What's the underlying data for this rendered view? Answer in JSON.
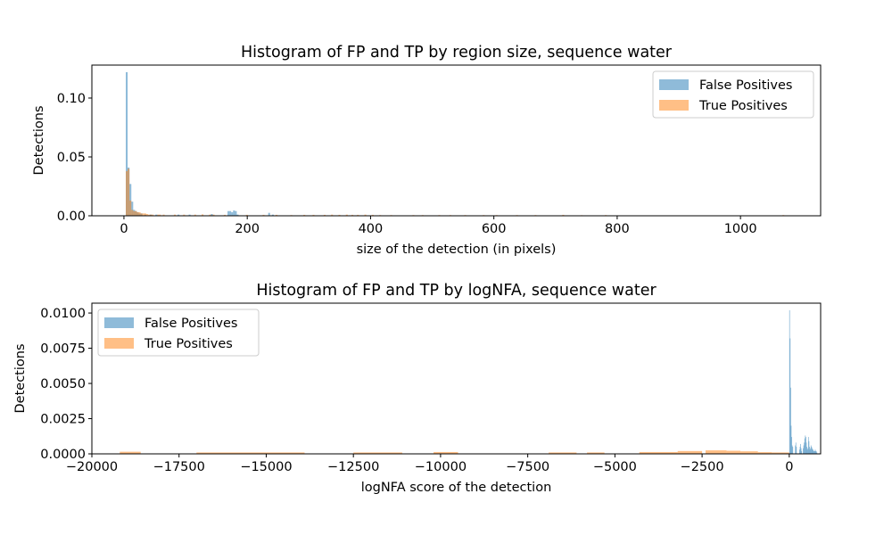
{
  "chart_data": [
    {
      "type": "histogram",
      "title": "Histogram of FP and TP by region size, sequence water",
      "xlabel": "size of the detection (in pixels)",
      "ylabel": "Detections",
      "xlim": [
        -52,
        1130
      ],
      "ylim": [
        0,
        0.128
      ],
      "xticks": [
        0,
        200,
        400,
        600,
        800,
        1000
      ],
      "xtick_labels": [
        "0",
        "200",
        "400",
        "600",
        "800",
        "1000"
      ],
      "yticks": [
        0,
        0.05,
        0.1
      ],
      "ytick_labels": [
        "0.00",
        "0.05",
        "0.10"
      ],
      "grid": false,
      "legend_position": "upper right",
      "series": [
        {
          "name": "False Positives",
          "color": "#1f77b4",
          "alpha": 0.5,
          "bins": [
            [
              3,
              6,
              0.122
            ],
            [
              6,
              9,
              0.041
            ],
            [
              9,
              12,
              0.027
            ],
            [
              12,
              15,
              0.012
            ],
            [
              15,
              18,
              0.005
            ],
            [
              18,
              21,
              0.004
            ],
            [
              21,
              24,
              0.003
            ],
            [
              24,
              27,
              0.002
            ],
            [
              27,
              30,
              0.002
            ],
            [
              33,
              36,
              0.001
            ],
            [
              42,
              45,
              0.001
            ],
            [
              51,
              54,
              0.001
            ],
            [
              87,
              90,
              0.001
            ],
            [
              105,
              108,
              0.001
            ],
            [
              141,
              144,
              0.0015
            ],
            [
              168,
              171,
              0.004
            ],
            [
              171,
              174,
              0.004
            ],
            [
              174,
              177,
              0.003
            ],
            [
              177,
              180,
              0.0045
            ],
            [
              180,
              183,
              0.004
            ],
            [
              183,
              186,
              0.001
            ],
            [
              234,
              237,
              0.0025
            ],
            [
              240,
              243,
              0.001
            ]
          ]
        },
        {
          "name": "True Positives",
          "color": "#ff7f0e",
          "alpha": 0.5,
          "bins": [
            [
              3,
              6,
              0.038
            ],
            [
              6,
              9,
              0.04
            ],
            [
              9,
              12,
              0.013
            ],
            [
              12,
              15,
              0.005
            ],
            [
              15,
              18,
              0.004
            ],
            [
              18,
              21,
              0.004
            ],
            [
              21,
              24,
              0.003
            ],
            [
              24,
              27,
              0.003
            ],
            [
              27,
              30,
              0.002
            ],
            [
              30,
              33,
              0.002
            ],
            [
              33,
              36,
              0.002
            ],
            [
              36,
              39,
              0.0015
            ],
            [
              39,
              42,
              0.001
            ],
            [
              42,
              45,
              0.001
            ],
            [
              45,
              48,
              0.001
            ],
            [
              54,
              57,
              0.001
            ],
            [
              57,
              60,
              0.001
            ],
            [
              63,
              66,
              0.001
            ],
            [
              81,
              84,
              0.001
            ],
            [
              96,
              99,
              0.001
            ],
            [
              114,
              117,
              0.001
            ],
            [
              126,
              129,
              0.0012
            ],
            [
              138,
              141,
              0.001
            ],
            [
              144,
              147,
              0.001
            ],
            [
              162,
              165,
              0.0008
            ],
            [
              198,
              201,
              0.0008
            ],
            [
              225,
              228,
              0.0008
            ],
            [
              246,
              249,
              0.0008
            ],
            [
              270,
              273,
              0.0006
            ],
            [
              291,
              294,
              0.0008
            ],
            [
              306,
              309,
              0.0008
            ],
            [
              324,
              327,
              0.0008
            ],
            [
              336,
              339,
              0.001
            ],
            [
              348,
              351,
              0.0008
            ],
            [
              360,
              363,
              0.001
            ],
            [
              369,
              372,
              0.0008
            ],
            [
              378,
              381,
              0.0008
            ],
            [
              390,
              393,
              0.001
            ],
            [
              402,
              405,
              0.0008
            ],
            [
              414,
              417,
              0.0006
            ],
            [
              432,
              435,
              0.0006
            ],
            [
              468,
              471,
              0.0006
            ],
            [
              483,
              486,
              0.0006
            ],
            [
              510,
              513,
              0.0006
            ],
            [
              528,
              531,
              0.0006
            ],
            [
              552,
              555,
              0.0006
            ],
            [
              582,
              585,
              0.0006
            ],
            [
              603,
              606,
              0.0006
            ],
            [
              636,
              639,
              0.0006
            ],
            [
              666,
              669,
              0.0006
            ],
            [
              711,
              714,
              0.0008
            ],
            [
              741,
              744,
              0.0005
            ],
            [
              780,
              783,
              0.0006
            ],
            [
              1068,
              1071,
              0.0006
            ]
          ]
        }
      ]
    },
    {
      "type": "histogram",
      "title": "Histogram of FP and TP by logNFA, sequence water",
      "xlabel": "logNFA score of the detection",
      "ylabel": "Detections",
      "xlim": [
        -20000,
        900
      ],
      "ylim": [
        0,
        0.0107
      ],
      "xticks": [
        -20000,
        -17500,
        -15000,
        -12500,
        -10000,
        -7500,
        -5000,
        -2500,
        0
      ],
      "xtick_labels": [
        "−20000",
        "−17500",
        "−15000",
        "−12500",
        "−10000",
        "−7500",
        "−5000",
        "−2500",
        "0"
      ],
      "yticks": [
        0,
        0.0025,
        0.005,
        0.0075,
        0.01
      ],
      "ytick_labels": [
        "0.0000",
        "0.0025",
        "0.0050",
        "0.0075",
        "0.0100"
      ],
      "grid": false,
      "legend_position": "upper left",
      "series": [
        {
          "name": "False Positives",
          "color": "#1f77b4",
          "alpha": 0.5,
          "bins": [
            [
              0,
              15,
              0.0102
            ],
            [
              15,
              30,
              0.0082
            ],
            [
              30,
              45,
              0.0047
            ],
            [
              45,
              60,
              0.002
            ],
            [
              60,
              75,
              0.0012
            ],
            [
              75,
              90,
              0.0006
            ],
            [
              90,
              105,
              0.0005
            ],
            [
              165,
              180,
              0.0006
            ],
            [
              180,
              195,
              0.0008
            ],
            [
              195,
              210,
              0.0005
            ],
            [
              285,
              300,
              0.0003
            ],
            [
              300,
              315,
              0.0005
            ],
            [
              315,
              330,
              0.0007
            ],
            [
              330,
              345,
              0.0004
            ],
            [
              345,
              360,
              0.0002
            ],
            [
              390,
              405,
              0.0004
            ],
            [
              405,
              420,
              0.0006
            ],
            [
              420,
              435,
              0.0008
            ],
            [
              435,
              450,
              0.0011
            ],
            [
              450,
              465,
              0.0013
            ],
            [
              465,
              480,
              0.0012
            ],
            [
              480,
              495,
              0.0008
            ],
            [
              495,
              510,
              0.0005
            ],
            [
              510,
              525,
              0.0003
            ],
            [
              525,
              540,
              0.0004
            ],
            [
              540,
              555,
              0.0012
            ],
            [
              555,
              570,
              0.0009
            ],
            [
              570,
              585,
              0.0005
            ],
            [
              585,
              600,
              0.0003
            ],
            [
              600,
              615,
              0.0004
            ],
            [
              615,
              630,
              0.0006
            ],
            [
              630,
              645,
              0.0005
            ],
            [
              645,
              660,
              0.0004
            ],
            [
              660,
              675,
              0.0003
            ],
            [
              675,
              690,
              0.0003
            ],
            [
              690,
              705,
              0.0002
            ],
            [
              705,
              720,
              0.0002
            ],
            [
              720,
              735,
              0.0002
            ],
            [
              735,
              750,
              0.0003
            ],
            [
              750,
              765,
              0.0002
            ],
            [
              765,
              780,
              0.0002
            ],
            [
              780,
              795,
              0.0001
            ]
          ]
        },
        {
          "name": "True Positives",
          "color": "#ff7f0e",
          "alpha": 0.5,
          "bins": [
            [
              -19200,
              -18600,
              0.00015
            ],
            [
              -17000,
              -13900,
              0.0001
            ],
            [
              -12500,
              -11100,
              0.0001
            ],
            [
              -10200,
              -9500,
              0.00013
            ],
            [
              -6900,
              -6100,
              0.0001
            ],
            [
              -5800,
              -5300,
              0.0001
            ],
            [
              -4300,
              -3200,
              0.00013
            ],
            [
              -3200,
              -2500,
              0.0002
            ],
            [
              -2400,
              -1800,
              0.00025
            ],
            [
              -1800,
              -1400,
              0.00022
            ],
            [
              -1400,
              -900,
              0.00018
            ],
            [
              -900,
              -500,
              0.00012
            ],
            [
              -500,
              -100,
              0.0001
            ],
            [
              -100,
              0,
              0.0001
            ]
          ]
        }
      ]
    }
  ]
}
